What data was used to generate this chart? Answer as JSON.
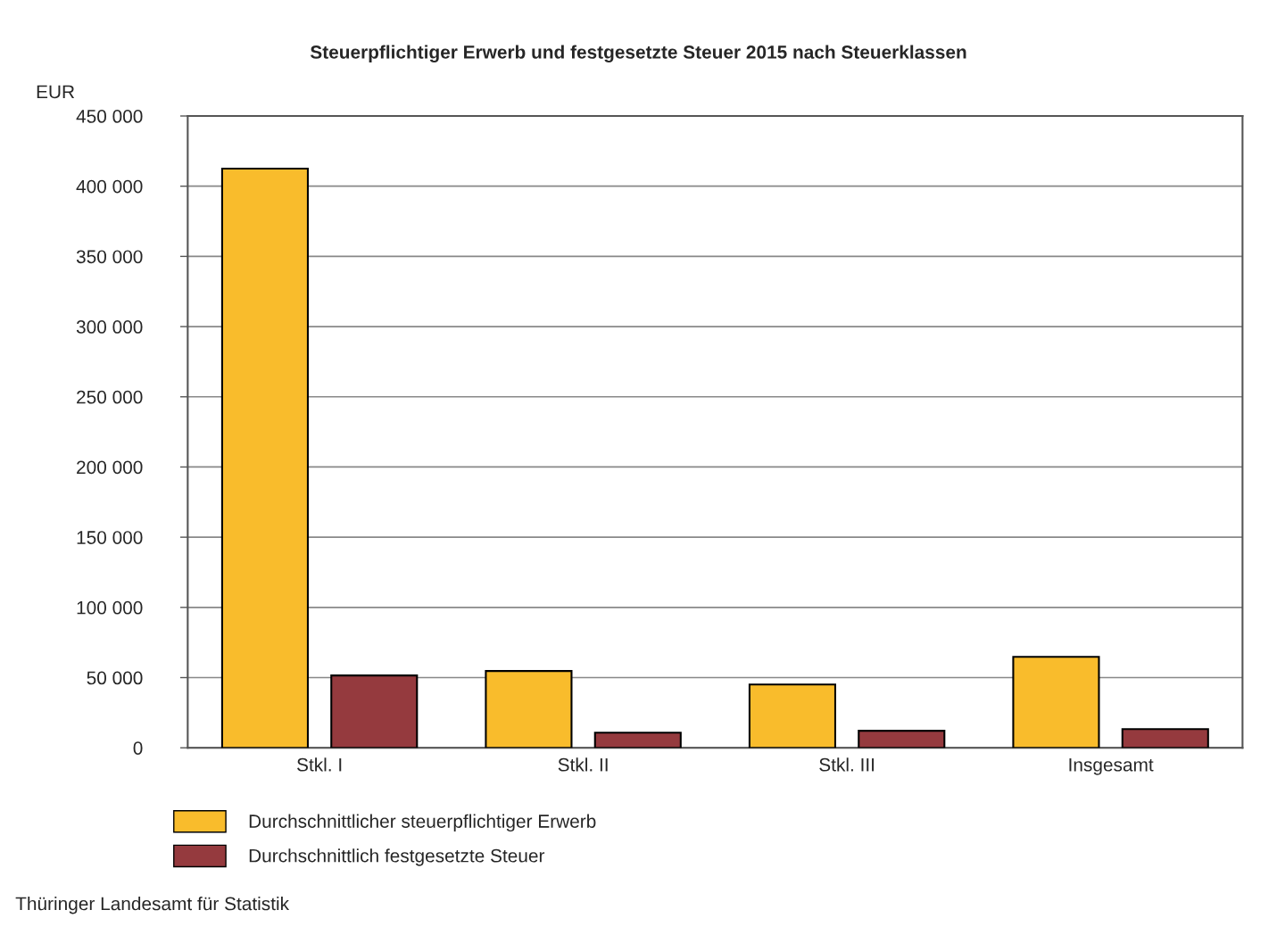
{
  "chart_data": {
    "type": "bar",
    "title": "Steuerpflichtiger Erwerb und festgesetzte Steuer 2015 nach Steuerklassen",
    "ylabel": "EUR",
    "categories": [
      "Stkl. I",
      "Stkl. II",
      "Stkl. III",
      "Insgesamt"
    ],
    "series": [
      {
        "name": "Durchschnittlicher steuerpflichtiger Erwerb",
        "color": "#f9bc2c",
        "values": [
          412500,
          54700,
          45100,
          64800
        ]
      },
      {
        "name": "Durchschnittlich festgesetzte Steuer",
        "color": "#953a3e",
        "values": [
          51500,
          10800,
          12100,
          13300
        ]
      }
    ],
    "ylim": [
      0,
      450000
    ],
    "yticks": [
      0,
      {
        "value": 50000,
        "label": "50 000"
      },
      {
        "value": 100000,
        "label": "100 000"
      },
      {
        "value": 150000,
        "label": "150 000"
      },
      {
        "value": 200000,
        "label": "200 000"
      },
      {
        "value": 250000,
        "label": "250 000"
      },
      {
        "value": 300000,
        "label": "300 000"
      },
      {
        "value": 350000,
        "label": "350 000"
      },
      {
        "value": 400000,
        "label": "400 000"
      },
      {
        "value": 450000,
        "label": "450 000"
      }
    ],
    "grid": "y",
    "legend": "bottom",
    "annotations": [
      "Thüringer Landesamt für Statistik"
    ]
  }
}
